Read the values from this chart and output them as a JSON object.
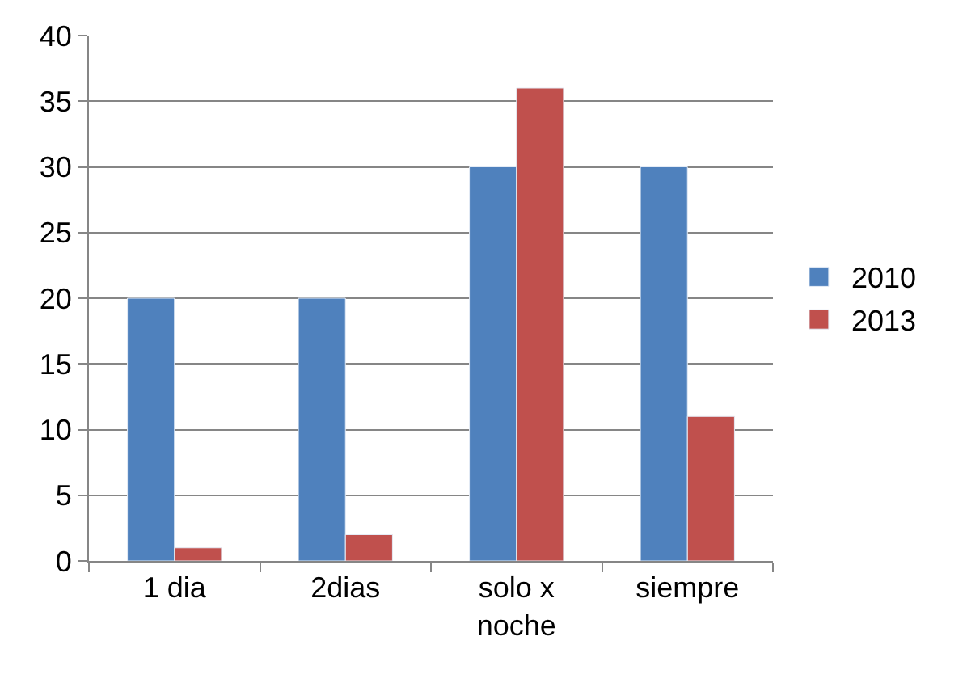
{
  "chart_data": {
    "type": "bar",
    "categories": [
      "1 dia",
      "2dias",
      "solo x noche",
      "siempre"
    ],
    "series": [
      {
        "name": "2010",
        "color": "#4f81bd",
        "values": [
          20,
          20,
          30,
          30
        ]
      },
      {
        "name": "2013",
        "color": "#c0504d",
        "values": [
          1,
          2,
          36,
          11
        ]
      }
    ],
    "ylim": [
      0,
      40
    ],
    "yticks": [
      0,
      5,
      10,
      15,
      20,
      25,
      30,
      35,
      40
    ],
    "grid": "y",
    "legend": "right"
  }
}
